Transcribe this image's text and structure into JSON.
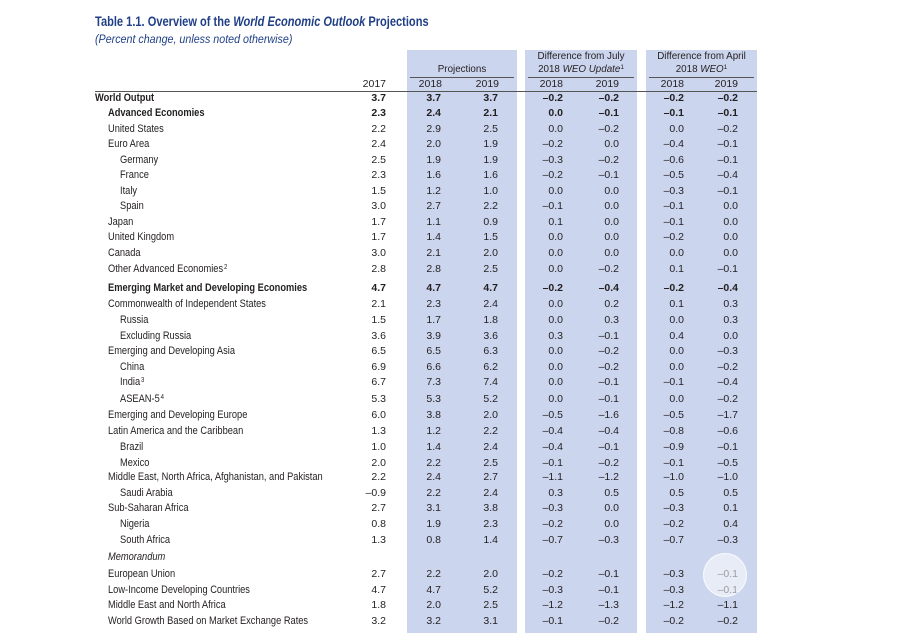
{
  "title": {
    "prefix": "Table 1.1. Overview of the ",
    "italic": "World Economic Outlook",
    "suffix": " Projections"
  },
  "subtitle": "(Percent change, unless noted otherwise)",
  "colors": {
    "column_shading": "#ccd5ee",
    "title": "#1f3f86"
  },
  "headers": {
    "year_2017": "2017",
    "projections": {
      "label": "Projections",
      "years": [
        "2018",
        "2019"
      ]
    },
    "diff_july": {
      "line1": "Difference from July",
      "line2_prefix": "2018 ",
      "line2_italic": "WEO Update",
      "note": "1",
      "years": [
        "2018",
        "2019"
      ]
    },
    "diff_april": {
      "line1": "Difference from April",
      "line2_prefix": "2018 ",
      "line2_italic": "WEO",
      "note": "1",
      "years": [
        "2018",
        "2019"
      ]
    }
  },
  "rows": [
    {
      "label": "World Output",
      "values": [
        "3.7",
        "3.7",
        "3.7",
        "–0.2",
        "–0.2",
        "–0.2",
        "–0.2"
      ]
    },
    {
      "label": "Advanced Economies",
      "values": [
        "2.3",
        "2.4",
        "2.1",
        "0.0",
        "–0.1",
        "–0.1",
        "–0.1"
      ]
    },
    {
      "label": "United States",
      "values": [
        "2.2",
        "2.9",
        "2.5",
        "0.0",
        "–0.2",
        "0.0",
        "–0.2"
      ]
    },
    {
      "label": "Euro Area",
      "values": [
        "2.4",
        "2.0",
        "1.9",
        "–0.2",
        "0.0",
        "–0.4",
        "–0.1"
      ]
    },
    {
      "label": "Germany",
      "values": [
        "2.5",
        "1.9",
        "1.9",
        "–0.3",
        "–0.2",
        "–0.6",
        "–0.1"
      ]
    },
    {
      "label": "France",
      "values": [
        "2.3",
        "1.6",
        "1.6",
        "–0.2",
        "–0.1",
        "–0.5",
        "–0.4"
      ]
    },
    {
      "label": "Italy",
      "values": [
        "1.5",
        "1.2",
        "1.0",
        "0.0",
        "0.0",
        "–0.3",
        "–0.1"
      ]
    },
    {
      "label": "Spain",
      "values": [
        "3.0",
        "2.7",
        "2.2",
        "–0.1",
        "0.0",
        "–0.1",
        "0.0"
      ]
    },
    {
      "label": "Japan",
      "values": [
        "1.7",
        "1.1",
        "0.9",
        "0.1",
        "0.0",
        "–0.1",
        "0.0"
      ]
    },
    {
      "label": "United Kingdom",
      "values": [
        "1.7",
        "1.4",
        "1.5",
        "0.0",
        "0.0",
        "–0.2",
        "0.0"
      ]
    },
    {
      "label": "Canada",
      "values": [
        "3.0",
        "2.1",
        "2.0",
        "0.0",
        "0.0",
        "0.0",
        "0.0"
      ]
    },
    {
      "label": "Other Advanced Economies",
      "note": "2",
      "values": [
        "2.8",
        "2.8",
        "2.5",
        "0.0",
        "–0.2",
        "0.1",
        "–0.1"
      ]
    },
    {
      "label": "Emerging Market and Developing Economies",
      "values": [
        "4.7",
        "4.7",
        "4.7",
        "–0.2",
        "–0.4",
        "–0.2",
        "–0.4"
      ]
    },
    {
      "label": "Commonwealth of Independent States",
      "values": [
        "2.1",
        "2.3",
        "2.4",
        "0.0",
        "0.2",
        "0.1",
        "0.3"
      ]
    },
    {
      "label": "Russia",
      "values": [
        "1.5",
        "1.7",
        "1.8",
        "0.0",
        "0.3",
        "0.0",
        "0.3"
      ]
    },
    {
      "label": "Excluding Russia",
      "values": [
        "3.6",
        "3.9",
        "3.6",
        "0.3",
        "–0.1",
        "0.4",
        "0.0"
      ]
    },
    {
      "label": "Emerging and Developing Asia",
      "values": [
        "6.5",
        "6.5",
        "6.3",
        "0.0",
        "–0.2",
        "0.0",
        "–0.3"
      ]
    },
    {
      "label": "China",
      "values": [
        "6.9",
        "6.6",
        "6.2",
        "0.0",
        "–0.2",
        "0.0",
        "–0.2"
      ]
    },
    {
      "label": "India",
      "note": "3",
      "values": [
        "6.7",
        "7.3",
        "7.4",
        "0.0",
        "–0.1",
        "–0.1",
        "–0.4"
      ]
    },
    {
      "label": "ASEAN-5",
      "note": "4",
      "values": [
        "5.3",
        "5.3",
        "5.2",
        "0.0",
        "–0.1",
        "0.0",
        "–0.2"
      ]
    },
    {
      "label": "Emerging and Developing Europe",
      "values": [
        "6.0",
        "3.8",
        "2.0",
        "–0.5",
        "–1.6",
        "–0.5",
        "–1.7"
      ]
    },
    {
      "label": "Latin America and the Caribbean",
      "values": [
        "1.3",
        "1.2",
        "2.2",
        "–0.4",
        "–0.4",
        "–0.8",
        "–0.6"
      ]
    },
    {
      "label": "Brazil",
      "values": [
        "1.0",
        "1.4",
        "2.4",
        "–0.4",
        "–0.1",
        "–0.9",
        "–0.1"
      ]
    },
    {
      "label": "Mexico",
      "values": [
        "2.0",
        "2.2",
        "2.5",
        "–0.1",
        "–0.2",
        "–0.1",
        "–0.5"
      ]
    },
    {
      "label": "Middle East, North Africa, Afghanistan, and Pakistan",
      "values": [
        "2.2",
        "2.4",
        "2.7",
        "–1.1",
        "–1.2",
        "–1.0",
        "–1.0"
      ]
    },
    {
      "label": "Saudi Arabia",
      "values": [
        "–0.9",
        "2.2",
        "2.4",
        "0.3",
        "0.5",
        "0.5",
        "0.5"
      ]
    },
    {
      "label": "Sub-Saharan Africa",
      "values": [
        "2.7",
        "3.1",
        "3.8",
        "–0.3",
        "0.0",
        "–0.3",
        "0.1"
      ]
    },
    {
      "label": "Nigeria",
      "values": [
        "0.8",
        "1.9",
        "2.3",
        "–0.2",
        "0.0",
        "–0.2",
        "0.4"
      ]
    },
    {
      "label": "South Africa",
      "values": [
        "1.3",
        "0.8",
        "1.4",
        "–0.7",
        "–0.3",
        "–0.7",
        "–0.3"
      ]
    },
    {
      "label": "Memorandum",
      "values": []
    },
    {
      "label": "European Union",
      "values": [
        "2.7",
        "2.2",
        "2.0",
        "–0.2",
        "–0.1",
        "–0.3",
        "–0.1"
      ]
    },
    {
      "label": "Low-Income Developing Countries",
      "values": [
        "4.7",
        "4.7",
        "5.2",
        "–0.3",
        "–0.1",
        "–0.3",
        "–0.1"
      ]
    },
    {
      "label": "Middle East and North Africa",
      "values": [
        "1.8",
        "2.0",
        "2.5",
        "–1.2",
        "–1.3",
        "–1.2",
        "–1.1"
      ]
    },
    {
      "label": "World Growth Based on Market Exchange Rates",
      "values": [
        "3.2",
        "3.2",
        "3.1",
        "–0.1",
        "–0.2",
        "–0.2",
        "–0.2"
      ]
    }
  ]
}
